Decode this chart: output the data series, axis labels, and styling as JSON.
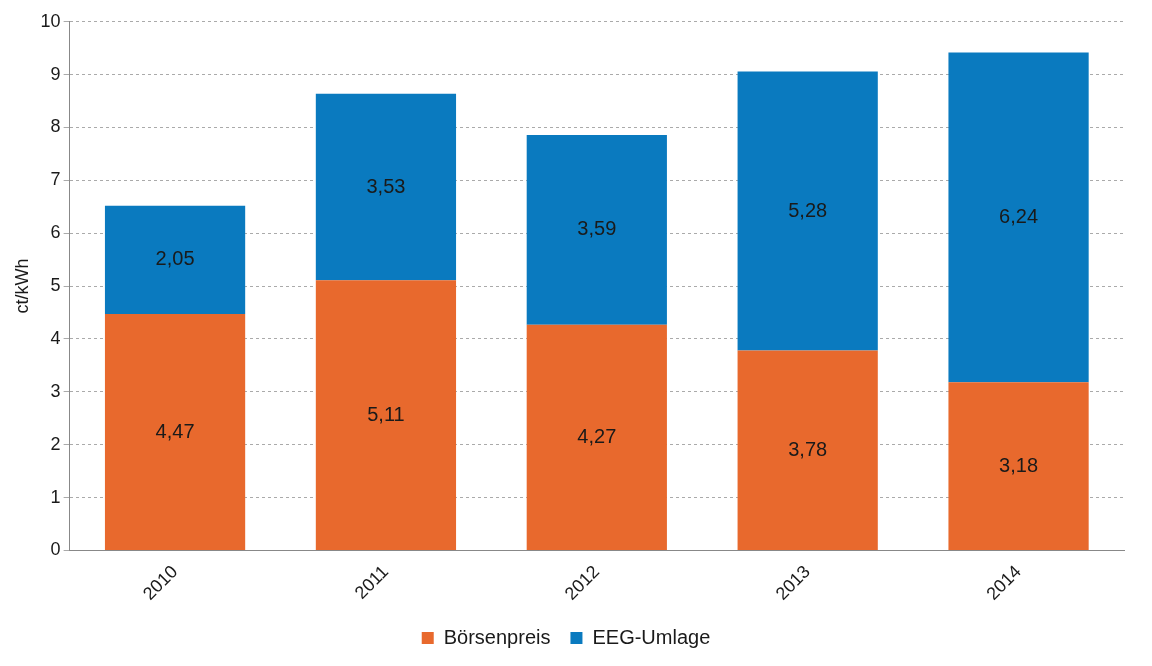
{
  "chart_data": {
    "type": "bar",
    "stacked": true,
    "ylabel": "ct/kWh",
    "categories": [
      "2010",
      "2011",
      "2012",
      "2013",
      "2014"
    ],
    "series": [
      {
        "name": "Börsenpreis",
        "color": "#e8692d",
        "values": [
          4.47,
          5.11,
          4.27,
          3.78,
          3.18
        ],
        "value_labels": [
          "4,47",
          "5,11",
          "4,27",
          "3,78",
          "3,18"
        ]
      },
      {
        "name": "EEG-Umlage",
        "color": "#0a7abf",
        "values": [
          2.05,
          3.53,
          3.59,
          5.28,
          6.24
        ],
        "value_labels": [
          "2,05",
          "3,53",
          "3,59",
          "5,28",
          "6,24"
        ]
      }
    ],
    "ylim": [
      0,
      10
    ],
    "yticks": [
      0,
      1,
      2,
      3,
      4,
      5,
      6,
      7,
      8,
      9,
      10
    ],
    "grid": "y",
    "legend": "bottom"
  }
}
